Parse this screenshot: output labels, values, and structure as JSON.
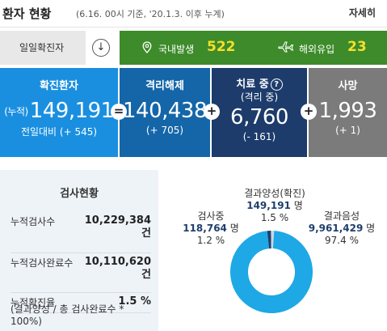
{
  "header": {
    "title": "환자 현황",
    "subtitle": "(6.16. 00시 기준, '20.1.3. 이후 누계)",
    "more": "자세히"
  },
  "daily": {
    "label": "일일확진자",
    "toggle_icon": "↓",
    "domestic_label": "국내발생",
    "domestic_value": "522",
    "overseas_label": "해외유입",
    "overseas_value": "23"
  },
  "stats": {
    "confirmed": {
      "label": "확진환자",
      "prefix": "(누적)",
      "value": "149,191",
      "delta": "전일대비 (+ 545)"
    },
    "released": {
      "label": "격리해제",
      "value": "140,438",
      "delta": "(+ 705)"
    },
    "treating": {
      "label": "치료 중",
      "sublabel": "(격리 중)",
      "value": "6,760",
      "delta": "(- 161)"
    },
    "deaths": {
      "label": "사망",
      "value": "1,993",
      "delta": "(+ 1)"
    },
    "op_equals": "=",
    "op_plus": "+"
  },
  "tests": {
    "title": "검사현황",
    "rows": [
      {
        "label": "누적검사수",
        "value": "10,229,384",
        "unit": "건"
      },
      {
        "label": "누적검사완료수",
        "value": "10,110,620",
        "unit": "건"
      },
      {
        "label": "누적확진율",
        "value": "1.5 %"
      }
    ],
    "note": "(결과양성 / 총 검사완료수 * 100%)"
  },
  "donut": {
    "positive": {
      "label": "결과양성(확진)",
      "value": "149,191",
      "unit": "명",
      "pct": "1.5 %"
    },
    "testing": {
      "label": "검사중",
      "value": "118,764",
      "unit": "명",
      "pct": "1.2 %"
    },
    "negative": {
      "label": "결과음성",
      "value": "9,961,429",
      "unit": "명",
      "pct": "97.4 %"
    },
    "colors": {
      "negative": "#1ea8e6",
      "positive": "#1f3e6c",
      "testing": "#c9d7e6"
    },
    "fractions": {
      "negative": 0.974,
      "positive": 0.015,
      "testing": 0.012
    }
  }
}
